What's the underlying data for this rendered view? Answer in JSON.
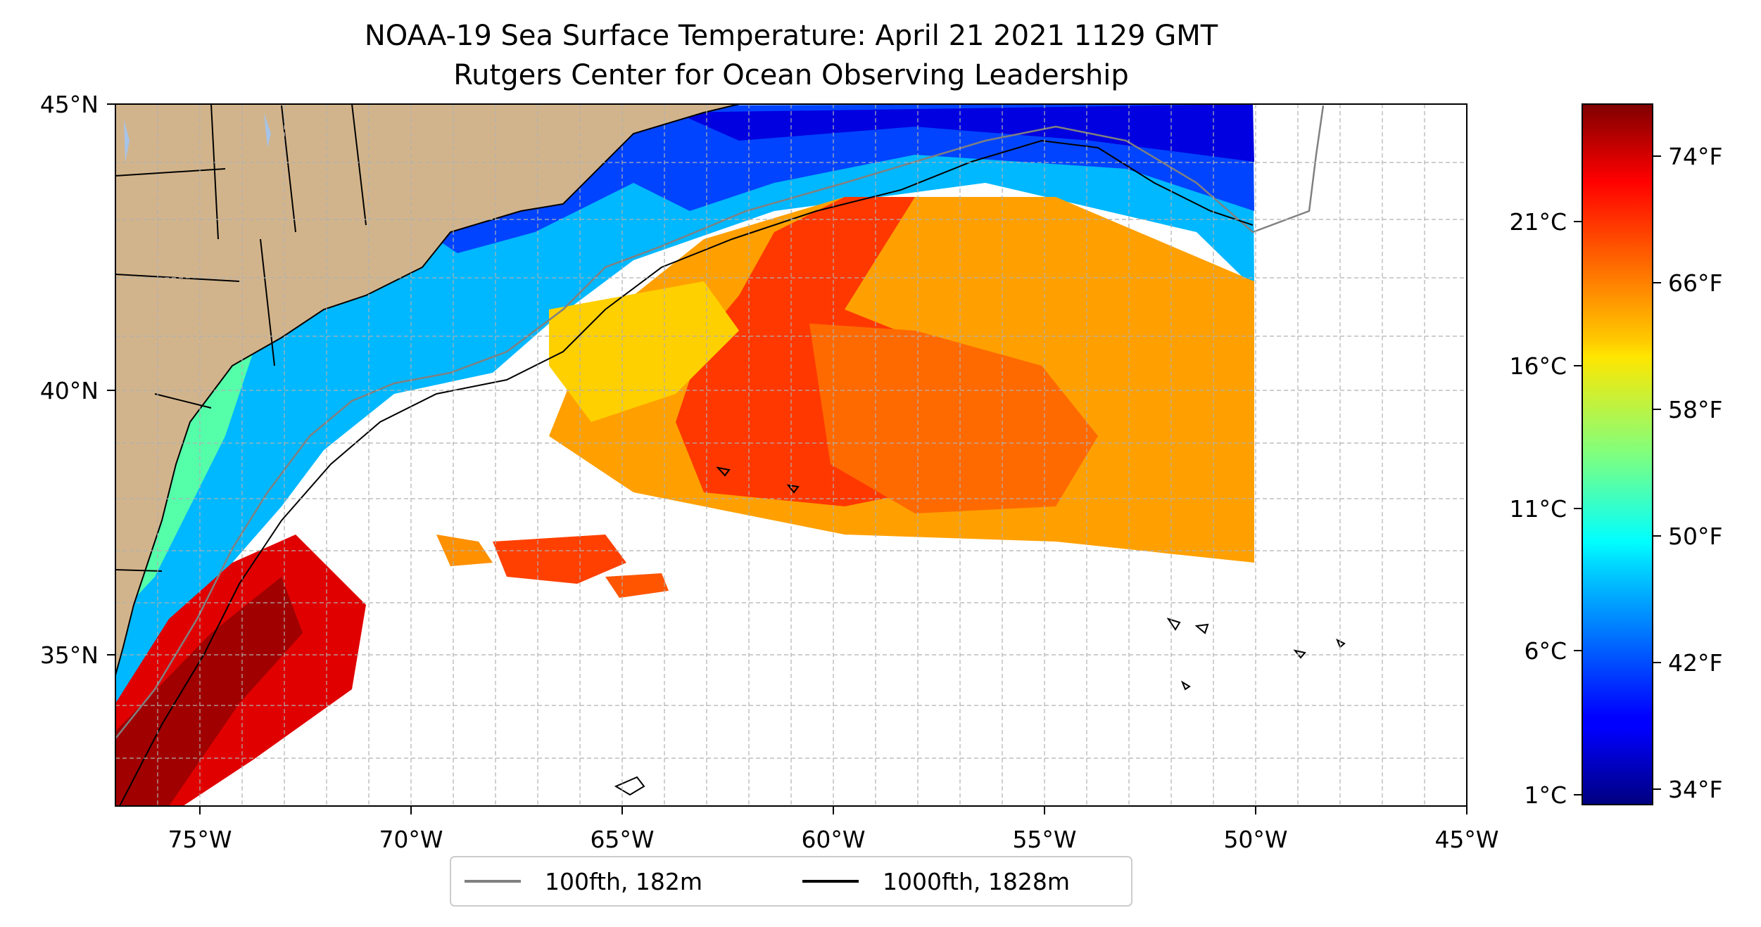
{
  "title": {
    "line1": "NOAA-19 Sea Surface Temperature: April 21 2021 1129 GMT",
    "line2": "Rutgers Center for Ocean Observing Leadership"
  },
  "map": {
    "lon_range": [
      -77,
      -45
    ],
    "lat_range": [
      32.2,
      45
    ],
    "lon_ticks": [
      "75°W",
      "70°W",
      "65°W",
      "60°W",
      "55°W",
      "50°W",
      "45°W"
    ],
    "lat_ticks": [
      "35°N",
      "40°N",
      "45°N"
    ],
    "land_color": "#d2b48c",
    "lake_color": "#a6c3e8",
    "gridlines": true
  },
  "colorbar": {
    "colormap": "jet",
    "celsius_ticks": [
      "1°C",
      "6°C",
      "11°C",
      "16°C",
      "21°C"
    ],
    "fahrenheit_ticks": [
      "34°F",
      "42°F",
      "50°F",
      "58°F",
      "66°F",
      "74°F"
    ]
  },
  "legend": {
    "items": [
      {
        "label": "100fth, 182m",
        "color": "#808080"
      },
      {
        "label": "1000fth, 1828m",
        "color": "#000000"
      }
    ]
  }
}
